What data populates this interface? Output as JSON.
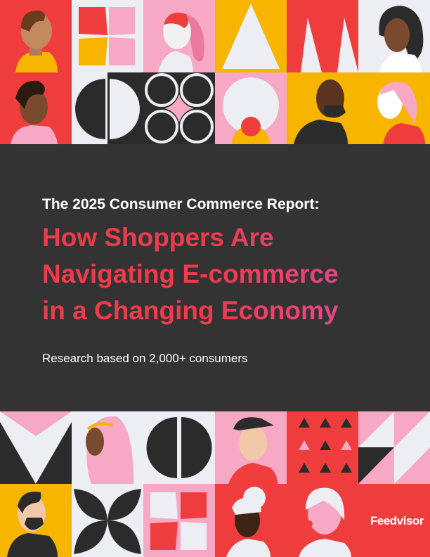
{
  "header": {
    "kicker": "The 2025 Consumer Commerce Report:",
    "headline": [
      "How Shoppers Are",
      "Navigating E-commerce",
      "in a Changing Economy"
    ],
    "subtitle": "Research based on 2,000+ consumers"
  },
  "footer": {
    "brand": "Feedvisor"
  }
}
